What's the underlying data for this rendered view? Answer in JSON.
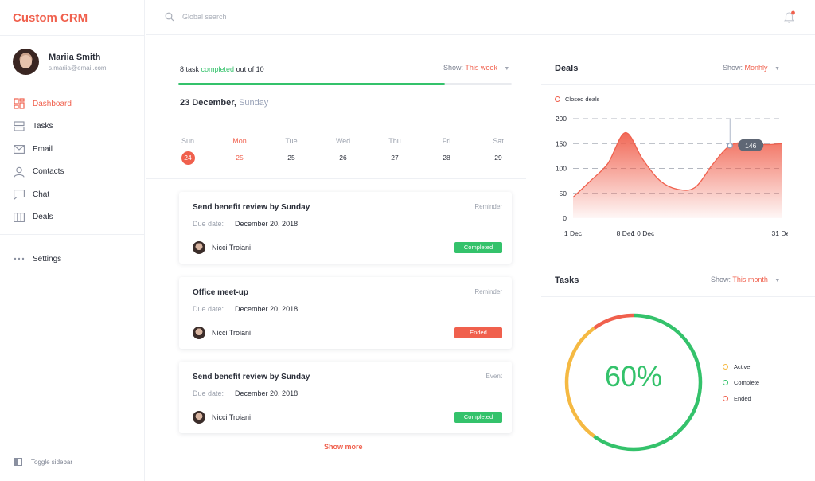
{
  "app": {
    "title": "Custom CRM"
  },
  "user": {
    "name": "Mariia Smith",
    "email": "s.mariia@email.com"
  },
  "nav": {
    "items": [
      {
        "label": "Dashboard",
        "icon": "dashboard-icon",
        "active": true
      },
      {
        "label": "Tasks",
        "icon": "tasks-icon"
      },
      {
        "label": "Email",
        "icon": "email-icon"
      },
      {
        "label": "Contacts",
        "icon": "contacts-icon"
      },
      {
        "label": "Chat",
        "icon": "chat-icon"
      },
      {
        "label": "Deals",
        "icon": "deals-icon"
      }
    ],
    "settings": "Settings",
    "toggle": "Toggle sidebar"
  },
  "topbar": {
    "search_placeholder": "Global search"
  },
  "tasks_progress": {
    "prefix": "8 task",
    "highlight": "completed",
    "suffix": "out of 10",
    "completed": 8,
    "total": 10
  },
  "task_filter": {
    "label": "Show:",
    "value": "This week"
  },
  "date": {
    "main": "23 December,",
    "weekday": "Sunday"
  },
  "week": [
    {
      "name": "Sun",
      "num": "24",
      "state": "selected"
    },
    {
      "name": "Mon",
      "num": "25",
      "state": "today"
    },
    {
      "name": "Tue",
      "num": "25",
      "state": ""
    },
    {
      "name": "Wed",
      "num": "26",
      "state": ""
    },
    {
      "name": "Thu",
      "num": "27",
      "state": ""
    },
    {
      "name": "Fri",
      "num": "28",
      "state": ""
    },
    {
      "name": "Sat",
      "num": "29",
      "state": ""
    }
  ],
  "tasks": [
    {
      "title": "Send benefit review by Sunday",
      "type": "Reminder",
      "due_label": "Due date:",
      "due": "December 20, 2018",
      "person": "Nicci Troiani",
      "status": "Completed",
      "status_color": "green"
    },
    {
      "title": "Office meet-up",
      "type": "Reminder",
      "due_label": "Due date:",
      "due": "December 20, 2018",
      "person": "Nicci Troiani",
      "status": "Ended",
      "status_color": "red"
    },
    {
      "title": "Send benefit review by Sunday",
      "type": "Event",
      "due_label": "Due date:",
      "due": "December 20, 2018",
      "person": "Nicci Troiani",
      "status": "Completed",
      "status_color": "green"
    }
  ],
  "show_more": "Show more",
  "deals": {
    "title": "Deals",
    "filter": {
      "label": "Show:",
      "value": "Monhly"
    },
    "legend": "Closed deals",
    "tooltip": "146"
  },
  "tasks_panel": {
    "title": "Tasks",
    "filter": {
      "label": "Show:",
      "value": "This month"
    },
    "percent_label": "60%",
    "legend": [
      {
        "label": "Active",
        "color": "#f5b942"
      },
      {
        "label": "Complete",
        "color": "#34c26b"
      },
      {
        "label": "Ended",
        "color": "#f0604d"
      }
    ]
  },
  "chart_data": [
    {
      "type": "area",
      "series": [
        {
          "name": "Closed deals",
          "x": [
            "1 Dec",
            "3 Dec",
            "6 Dec",
            "8 Dec",
            "10 Dec",
            "12 Dec",
            "15 Dec",
            "18 Dec",
            "21 Dec",
            "24 Dec",
            "26 Dec",
            "28 Dec",
            "31 Dec"
          ],
          "values": [
            42,
            75,
            110,
            172,
            118,
            75,
            58,
            62,
            108,
            146,
            152,
            148,
            150
          ]
        }
      ],
      "x_tick_labels": [
        "1 Dec",
        "8 Dec",
        "1 0 Dec",
        "31 Dec"
      ],
      "y_ticks": [
        0,
        50,
        100,
        150,
        200
      ],
      "ylim": [
        0,
        200
      ],
      "grid": "horizontal dashed",
      "highlight": {
        "x": "24 Dec",
        "value": 146
      },
      "color": "#f0604d"
    },
    {
      "type": "pie",
      "categories": [
        "Complete",
        "Active",
        "Ended"
      ],
      "values": [
        60,
        30,
        10
      ],
      "center_label": "60%"
    }
  ]
}
